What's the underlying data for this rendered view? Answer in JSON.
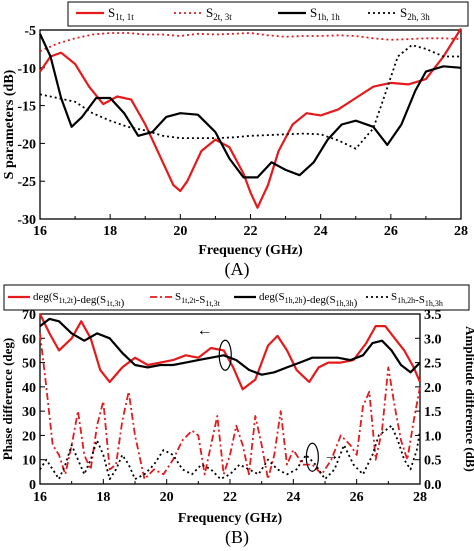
{
  "colors": {
    "red": "#e41a1c",
    "black": "#000000"
  },
  "chart_data": [
    {
      "panel": "(A)",
      "type": "line",
      "xlabel": "Frequency (GHz)",
      "ylabel": "S parameters (dB)",
      "xlim": [
        16,
        28
      ],
      "ylim": [
        -30,
        -5
      ],
      "xticks": [
        "16",
        "18",
        "20",
        "22",
        "24",
        "26",
        "28"
      ],
      "yticks": [
        "-5",
        "-10",
        "-15",
        "-20",
        "-25",
        "-30"
      ],
      "legend_position": "top",
      "grid": false,
      "legend": [
        {
          "main": "S",
          "sub": "1t,   1t"
        },
        {
          "main": "S",
          "sub": "2t,   3t"
        },
        {
          "main": "S",
          "sub": "1h,   1h"
        },
        {
          "main": "S",
          "sub": "2h,   3h"
        }
      ],
      "series": [
        {
          "color": "#e41a1c",
          "dash": "solid",
          "width": 2.2,
          "x": [
            16,
            16.3,
            16.6,
            17.0,
            17.4,
            17.8,
            18.2,
            18.6,
            19.0,
            19.4,
            19.8,
            20.0,
            20.2,
            20.6,
            21.0,
            21.4,
            21.8,
            22.0,
            22.2,
            22.5,
            22.8,
            23.2,
            23.6,
            24.0,
            24.5,
            25.0,
            25.5,
            26.0,
            26.5,
            27.0,
            27.5,
            28
          ],
          "y": [
            -10.5,
            -8.5,
            -8.0,
            -9.5,
            -12.5,
            -14.8,
            -13.8,
            -14.2,
            -17.5,
            -21.5,
            -25.5,
            -26.3,
            -25.0,
            -21.0,
            -19.5,
            -20.5,
            -24.0,
            -26.5,
            -28.5,
            -25.5,
            -21.0,
            -17.5,
            -16.0,
            -16.3,
            -15.5,
            -14.0,
            -12.5,
            -12.0,
            -12.2,
            -11.5,
            -8.5,
            -4.8
          ]
        },
        {
          "color": "#e41a1c",
          "dash": "dotted",
          "width": 1.8,
          "x": [
            16,
            16.5,
            17.0,
            17.5,
            18.0,
            18.5,
            19.0,
            19.5,
            20.0,
            20.5,
            21.0,
            21.5,
            22.0,
            22.5,
            23.0,
            23.5,
            24.0,
            24.5,
            25.0,
            25.5,
            26.0,
            26.5,
            27.0,
            27.5,
            28
          ],
          "y": [
            -7.8,
            -6.8,
            -6.1,
            -5.6,
            -5.4,
            -5.4,
            -5.6,
            -5.6,
            -5.8,
            -5.5,
            -5.6,
            -5.5,
            -5.4,
            -5.7,
            -5.9,
            -5.8,
            -5.8,
            -5.7,
            -5.8,
            -6.1,
            -6.3,
            -6.2,
            -6.1,
            -6.1,
            -6.2
          ]
        },
        {
          "color": "#000000",
          "dash": "solid",
          "width": 2.2,
          "x": [
            16,
            16.3,
            16.6,
            16.9,
            17.2,
            17.6,
            18.0,
            18.4,
            18.8,
            19.2,
            19.6,
            20.0,
            20.5,
            21.0,
            21.4,
            21.8,
            22.2,
            22.6,
            23.0,
            23.4,
            23.8,
            24.2,
            24.6,
            25.0,
            25.5,
            25.9,
            26.3,
            26.7,
            27.0,
            27.5,
            28
          ],
          "y": [
            -5.5,
            -8.5,
            -14.0,
            -17.8,
            -16.5,
            -14.0,
            -14.0,
            -16.0,
            -19.0,
            -18.5,
            -16.5,
            -16.0,
            -16.2,
            -18.5,
            -22.0,
            -24.5,
            -24.5,
            -22.5,
            -23.5,
            -24.2,
            -22.5,
            -19.5,
            -17.5,
            -17.0,
            -17.8,
            -20.2,
            -17.5,
            -13.0,
            -10.5,
            -9.8,
            -10.0
          ]
        },
        {
          "color": "#000000",
          "dash": "dotted",
          "width": 1.8,
          "x": [
            16,
            16.5,
            17.0,
            17.5,
            18.0,
            18.5,
            19.0,
            19.5,
            20.0,
            20.5,
            21.0,
            21.5,
            22.0,
            22.5,
            23.0,
            23.5,
            24.0,
            24.5,
            25.0,
            25.5,
            25.8,
            26.2,
            26.6,
            27.0,
            27.5,
            28
          ],
          "y": [
            -13.5,
            -14.0,
            -14.5,
            -16.0,
            -17.0,
            -17.8,
            -18.3,
            -19.0,
            -19.3,
            -19.3,
            -19.3,
            -19.2,
            -19.0,
            -18.9,
            -18.8,
            -18.7,
            -18.8,
            -19.6,
            -20.7,
            -18.0,
            -14.0,
            -8.5,
            -7.0,
            -7.5,
            -8.5,
            -8.5
          ]
        }
      ]
    },
    {
      "panel": "(B)",
      "type": "line",
      "xlabel": "Frequency (GHz)",
      "ylabel_left": "Phase difference (deg)",
      "ylabel_right": "Amplitude difference (dB)",
      "xlim": [
        16,
        28
      ],
      "ylim_left": [
        0,
        70
      ],
      "ylim_right": [
        0,
        3.5
      ],
      "xticks": [
        "16",
        "18",
        "20",
        "22",
        "24",
        "26",
        "28"
      ],
      "yticks_left": [
        "0",
        "10",
        "20",
        "30",
        "40",
        "50",
        "60",
        "70"
      ],
      "yticks_right": [
        "0.0",
        "0.5",
        "1.0",
        "1.5",
        "2.0",
        "2.5",
        "3.0",
        "3.5"
      ],
      "legend_position": "top",
      "grid": false,
      "legend": [
        {
          "parts": [
            [
              "deg(S",
              ""
            ],
            [
              "1t,2t",
              "sub"
            ],
            [
              ")-deg(S",
              ""
            ],
            [
              "1t,3t",
              "sub"
            ],
            [
              ")",
              ""
            ]
          ]
        },
        {
          "parts": [
            [
              "S",
              ""
            ],
            [
              "1t,2t",
              "sub"
            ],
            [
              "-S",
              ""
            ],
            [
              "1t,3t",
              "sub"
            ]
          ]
        },
        {
          "parts": [
            [
              "deg(S",
              ""
            ],
            [
              "1h,2h",
              "sub"
            ],
            [
              ")-deg(S",
              ""
            ],
            [
              "1h,3h",
              "sub"
            ],
            [
              ")",
              ""
            ]
          ]
        },
        {
          "parts": [
            [
              "S",
              ""
            ],
            [
              "1h,2h",
              "sub"
            ],
            [
              "-S",
              ""
            ],
            [
              "1h,3h",
              "sub"
            ]
          ]
        }
      ],
      "series": [
        {
          "axis": "left",
          "color": "#e41a1c",
          "dash": "solid",
          "width": 2.2,
          "x": [
            16,
            16.3,
            16.6,
            17.0,
            17.3,
            17.6,
            17.9,
            18.2,
            18.6,
            19.0,
            19.4,
            19.8,
            20.2,
            20.6,
            21.0,
            21.4,
            21.8,
            22.1,
            22.4,
            22.8,
            23.2,
            23.5,
            23.8,
            24.1,
            24.5,
            24.8,
            25.1,
            25.5,
            25.9,
            26.3,
            26.6,
            26.9,
            27.2,
            27.5,
            27.8,
            28
          ],
          "y": [
            70,
            62,
            55,
            60,
            67,
            60,
            47,
            42,
            48,
            52,
            49,
            50,
            51,
            53,
            52,
            56,
            55,
            48,
            39,
            43,
            57,
            61,
            55,
            47,
            42,
            48,
            50,
            50,
            51,
            58,
            65,
            65,
            60,
            55,
            48,
            42
          ]
        },
        {
          "axis": "right",
          "color": "#e41a1c",
          "dash": "dashdot",
          "width": 1.8,
          "x": [
            16,
            16.2,
            16.4,
            16.6,
            16.8,
            17.0,
            17.2,
            17.4,
            17.6,
            17.8,
            18.0,
            18.2,
            18.4,
            18.6,
            18.8,
            19.0,
            19.3,
            19.6,
            19.9,
            20.2,
            20.5,
            20.8,
            21.0,
            21.2,
            21.4,
            21.6,
            21.8,
            22.0,
            22.2,
            22.4,
            22.6,
            22.8,
            23.0,
            23.2,
            23.4,
            23.6,
            23.8,
            24.0,
            24.3,
            24.6,
            24.9,
            25.2,
            25.5,
            25.8,
            26.0,
            26.2,
            26.4,
            26.6,
            26.8,
            27.0,
            27.2,
            27.4,
            27.6,
            27.8,
            28
          ],
          "y": [
            3.1,
            2.0,
            0.8,
            0.6,
            0.2,
            0.8,
            1.5,
            0.6,
            0.3,
            1.2,
            1.7,
            0.3,
            0.4,
            1.3,
            1.9,
            1.0,
            0.1,
            0.3,
            0.2,
            0.5,
            0.9,
            1.1,
            1.0,
            0.2,
            0.8,
            1.4,
            0.2,
            0.6,
            1.2,
            0.8,
            0.2,
            1.4,
            0.8,
            0.1,
            0.6,
            1.5,
            0.4,
            0.7,
            0.4,
            0.4,
            0.2,
            0.5,
            1.0,
            0.8,
            0.6,
            1.6,
            1.9,
            0.5,
            1.1,
            2.4,
            1.6,
            0.9,
            0.5,
            1.3,
            2.0
          ]
        },
        {
          "axis": "left",
          "color": "#000000",
          "dash": "solid",
          "width": 2.2,
          "x": [
            16,
            16.3,
            16.6,
            17.0,
            17.4,
            17.8,
            18.2,
            18.6,
            19.0,
            19.4,
            19.8,
            20.2,
            20.6,
            21.0,
            21.4,
            21.8,
            22.2,
            22.6,
            23.0,
            23.4,
            23.8,
            24.2,
            24.6,
            25.0,
            25.4,
            25.8,
            26.2,
            26.5,
            26.8,
            27.1,
            27.4,
            27.7,
            28
          ],
          "y": [
            65,
            68,
            67,
            62,
            59,
            62,
            60,
            54,
            49,
            48,
            49,
            49,
            50,
            51,
            52,
            53,
            51,
            47,
            45,
            46,
            48,
            50,
            52,
            52,
            52,
            51,
            53,
            58,
            59,
            55,
            49,
            46,
            50
          ]
        },
        {
          "axis": "right",
          "color": "#000000",
          "dash": "dotted",
          "width": 1.8,
          "x": [
            16,
            16.2,
            16.4,
            16.6,
            16.8,
            17.0,
            17.2,
            17.4,
            17.6,
            17.8,
            18.0,
            18.2,
            18.4,
            18.6,
            18.8,
            19.0,
            19.3,
            19.6,
            19.9,
            20.2,
            20.5,
            20.8,
            21.1,
            21.4,
            21.7,
            22.0,
            22.3,
            22.6,
            22.9,
            23.2,
            23.5,
            23.8,
            24.1,
            24.4,
            24.7,
            25.0,
            25.3,
            25.6,
            25.9,
            26.2,
            26.5,
            26.7,
            26.9,
            27.1,
            27.3,
            27.5,
            27.7,
            27.9,
            28
          ],
          "y": [
            0.3,
            0.5,
            0.3,
            0.1,
            0.4,
            0.8,
            0.5,
            0.2,
            0.5,
            0.9,
            0.6,
            0.1,
            0.3,
            0.6,
            0.4,
            0.1,
            0.2,
            0.4,
            0.7,
            0.6,
            0.3,
            0.2,
            0.4,
            0.3,
            0.1,
            0.2,
            0.4,
            0.3,
            0.2,
            0.5,
            0.3,
            0.2,
            0.3,
            0.6,
            0.4,
            0.1,
            0.3,
            0.8,
            0.4,
            0.2,
            0.6,
            1.0,
            1.1,
            1.2,
            0.9,
            0.5,
            0.3,
            0.7,
            1.1
          ]
        }
      ],
      "markers": [
        {
          "text": "←"
        },
        {
          "text": "→"
        }
      ]
    }
  ]
}
